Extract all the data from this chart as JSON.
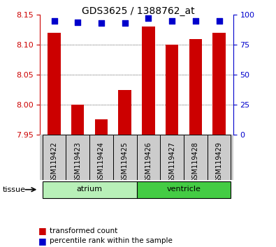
{
  "title": "GDS3625 / 1388762_at",
  "samples": [
    "GSM119422",
    "GSM119423",
    "GSM119424",
    "GSM119425",
    "GSM119426",
    "GSM119427",
    "GSM119428",
    "GSM119429"
  ],
  "red_values": [
    8.12,
    8.0,
    7.975,
    8.025,
    8.13,
    8.1,
    8.11,
    8.12
  ],
  "blue_values": [
    95,
    94,
    93,
    93,
    97,
    95,
    95,
    95
  ],
  "ylim_left": [
    7.95,
    8.15
  ],
  "ylim_right": [
    0,
    100
  ],
  "yticks_left": [
    7.95,
    8.0,
    8.05,
    8.1,
    8.15
  ],
  "yticks_right": [
    0,
    25,
    50,
    75,
    100
  ],
  "groups": [
    {
      "label": "atrium",
      "start": 0,
      "end": 4,
      "color": "#b8f0b8"
    },
    {
      "label": "ventricle",
      "start": 4,
      "end": 8,
      "color": "#44cc44"
    }
  ],
  "tissue_label": "tissue",
  "bar_color": "#cc0000",
  "dot_color": "#0000cc",
  "bg_color": "#ffffff",
  "plot_bg": "#ffffff",
  "left_axis_color": "#cc0000",
  "right_axis_color": "#0000cc",
  "legend_red": "transformed count",
  "legend_blue": "percentile rank within the sample",
  "bar_bottom": 7.95,
  "dot_size": 30,
  "sample_bg": "#cccccc"
}
